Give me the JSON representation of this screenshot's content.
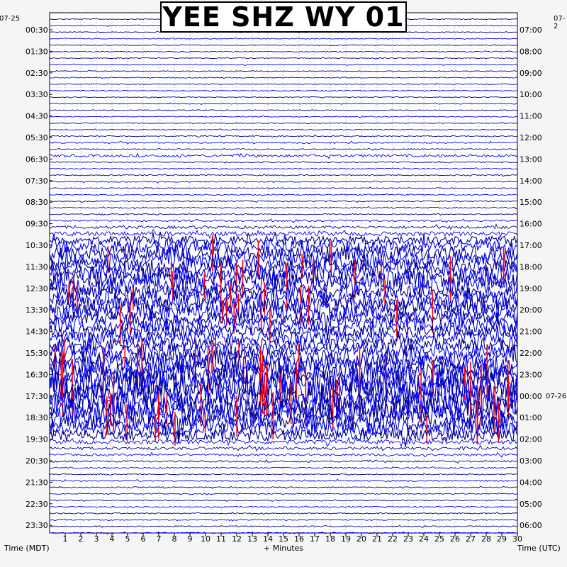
{
  "chart_data": {
    "type": "helicorder",
    "title": "YEE SHZ WY 01",
    "start_date_left": "07-25",
    "start_date_right": "07-2",
    "date_change_right": "07-26",
    "xlabel_left": "Time (MDT)",
    "xlabel_center": "+ Minutes",
    "xlabel_right": "Time (UTC)",
    "x_ticks": [
      "1",
      "2",
      "3",
      "4",
      "5",
      "6",
      "7",
      "8",
      "9",
      "10",
      "11",
      "12",
      "13",
      "14",
      "15",
      "16",
      "17",
      "18",
      "19",
      "20",
      "21",
      "22",
      "23",
      "24",
      "25",
      "26",
      "27",
      "28",
      "29",
      "30"
    ],
    "xlim": [
      0,
      30
    ],
    "left_time_labels": [
      "00:30",
      "01:30",
      "02:30",
      "03:30",
      "04:30",
      "05:30",
      "06:30",
      "07:30",
      "08:30",
      "09:30",
      "10:30",
      "11:30",
      "12:30",
      "13:30",
      "14:30",
      "15:30",
      "16:30",
      "17:30",
      "18:30",
      "19:30",
      "20:30",
      "21:30",
      "22:30",
      "23:30"
    ],
    "right_time_labels": [
      "07:00",
      "08:00",
      "09:00",
      "10:00",
      "11:00",
      "12:00",
      "13:00",
      "14:00",
      "15:00",
      "16:00",
      "17:00",
      "18:00",
      "19:00",
      "20:00",
      "21:00",
      "22:00",
      "23:00",
      "00:00",
      "01:00",
      "02:00",
      "03:00",
      "04:00",
      "05:00",
      "06:00"
    ],
    "trace_colors": [
      "#00008b",
      "#ff0000",
      "#0000ff",
      "#008000"
    ],
    "trace_amplitude": [
      0.6,
      0.6,
      0.6,
      0.6,
      0.6,
      0.6,
      0.6,
      0.6,
      0.6,
      0.6,
      0.6,
      0.6,
      0.6,
      0.6,
      0.6,
      0.6,
      0.6,
      0.6,
      0.8,
      1.0,
      0.8,
      1.8,
      0.8,
      0.8,
      0.8,
      0.8,
      0.8,
      0.8,
      0.8,
      0.8,
      0.8,
      1.2,
      2.0,
      3.0,
      6.0,
      9.0,
      10.0,
      11.0,
      10.0,
      11.0,
      12.0,
      13.0,
      10.0,
      12.0,
      11.0,
      12.0,
      10.0,
      10.0,
      9.0,
      9.0,
      9.0,
      10.0,
      11.0,
      13.0,
      14.0,
      16.0,
      18.0,
      18.0,
      18.0,
      16.0,
      15.0,
      14.0,
      12.0,
      10.0,
      8.0,
      3.0,
      2.0,
      1.6,
      1.2,
      1.0,
      0.8,
      1.0,
      0.8,
      0.8,
      0.8,
      0.8,
      0.8,
      0.8,
      0.8,
      0.8
    ],
    "bottom_band": {
      "label": "",
      "note": ""
    }
  }
}
